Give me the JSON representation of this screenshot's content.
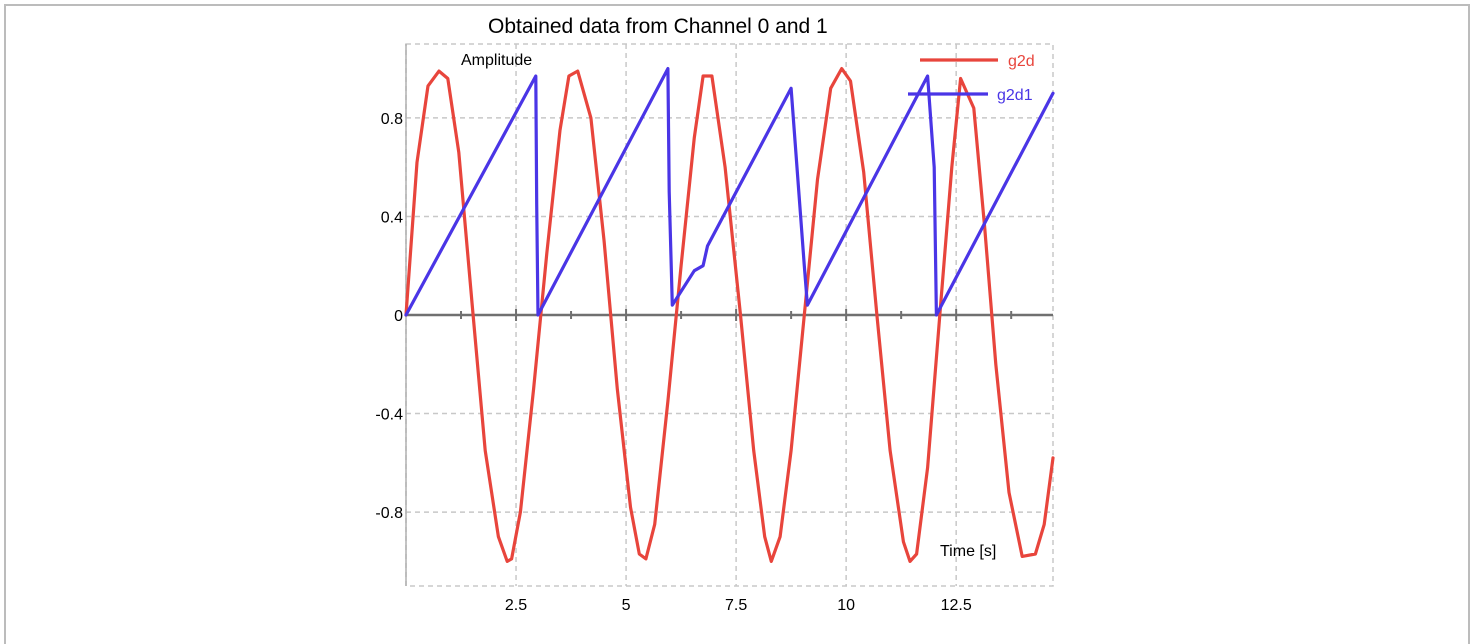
{
  "chart_data": {
    "type": "line",
    "title": "Obtained data from Channel 0 and 1",
    "xlabel": "Time [s]",
    "ylabel": "Amplitude",
    "xlim": [
      0,
      14.7
    ],
    "ylim": [
      -1.1,
      1.1
    ],
    "x_ticks": [
      2.5,
      5,
      7.5,
      10,
      12.5
    ],
    "x_tick_labels": [
      "2.5",
      "5",
      "7.5",
      "10",
      "12.5"
    ],
    "y_ticks": [
      0.8,
      0.4,
      0,
      -0.4,
      -0.8
    ],
    "y_tick_labels": [
      "0.8",
      "0.4",
      "0",
      "-0.4",
      "-0.8"
    ],
    "grid": true,
    "legend_position": "top-right",
    "series": [
      {
        "name": "g2d",
        "color": "#e8453c",
        "x": [
          0,
          0.25,
          0.5,
          0.75,
          0.95,
          1.2,
          1.5,
          1.8,
          2.1,
          2.3,
          2.4,
          2.6,
          2.9,
          3.2,
          3.5,
          3.7,
          3.9,
          4.2,
          4.5,
          4.8,
          5.1,
          5.3,
          5.45,
          5.65,
          5.95,
          6.25,
          6.55,
          6.75,
          6.95,
          7.25,
          7.6,
          7.9,
          8.15,
          8.3,
          8.5,
          8.75,
          9.05,
          9.35,
          9.65,
          9.9,
          10.1,
          10.4,
          10.7,
          11.0,
          11.3,
          11.45,
          11.6,
          11.85,
          12.15,
          12.4,
          12.6,
          12.9,
          13.15,
          13.4,
          13.7,
          14.0,
          14.3,
          14.5,
          14.7
        ],
        "values": [
          0.0,
          0.62,
          0.93,
          0.99,
          0.96,
          0.66,
          0.05,
          -0.55,
          -0.9,
          -1.0,
          -0.99,
          -0.8,
          -0.3,
          0.25,
          0.75,
          0.97,
          0.99,
          0.8,
          0.3,
          -0.3,
          -0.78,
          -0.97,
          -0.99,
          -0.85,
          -0.35,
          0.2,
          0.72,
          0.97,
          0.97,
          0.6,
          0.0,
          -0.55,
          -0.9,
          -1.0,
          -0.9,
          -0.55,
          0.0,
          0.55,
          0.92,
          1.0,
          0.95,
          0.58,
          0.0,
          -0.55,
          -0.92,
          -1.0,
          -0.97,
          -0.62,
          0.05,
          0.6,
          0.96,
          0.84,
          0.35,
          -0.2,
          -0.72,
          -0.98,
          -0.97,
          -0.85,
          -0.58
        ]
      },
      {
        "name": "g2d1",
        "color": "#4a35e6",
        "x": [
          0,
          2.95,
          2.97,
          3.0,
          5.95,
          5.98,
          6.05,
          6.55,
          6.75,
          6.85,
          8.75,
          9.05,
          9.12,
          11.85,
          12.0,
          12.05,
          14.7
        ],
        "values": [
          0.0,
          0.97,
          0.45,
          0.0,
          1.0,
          0.5,
          0.04,
          0.18,
          0.2,
          0.28,
          0.92,
          0.2,
          0.04,
          0.97,
          0.6,
          0.0,
          0.9
        ]
      }
    ]
  }
}
